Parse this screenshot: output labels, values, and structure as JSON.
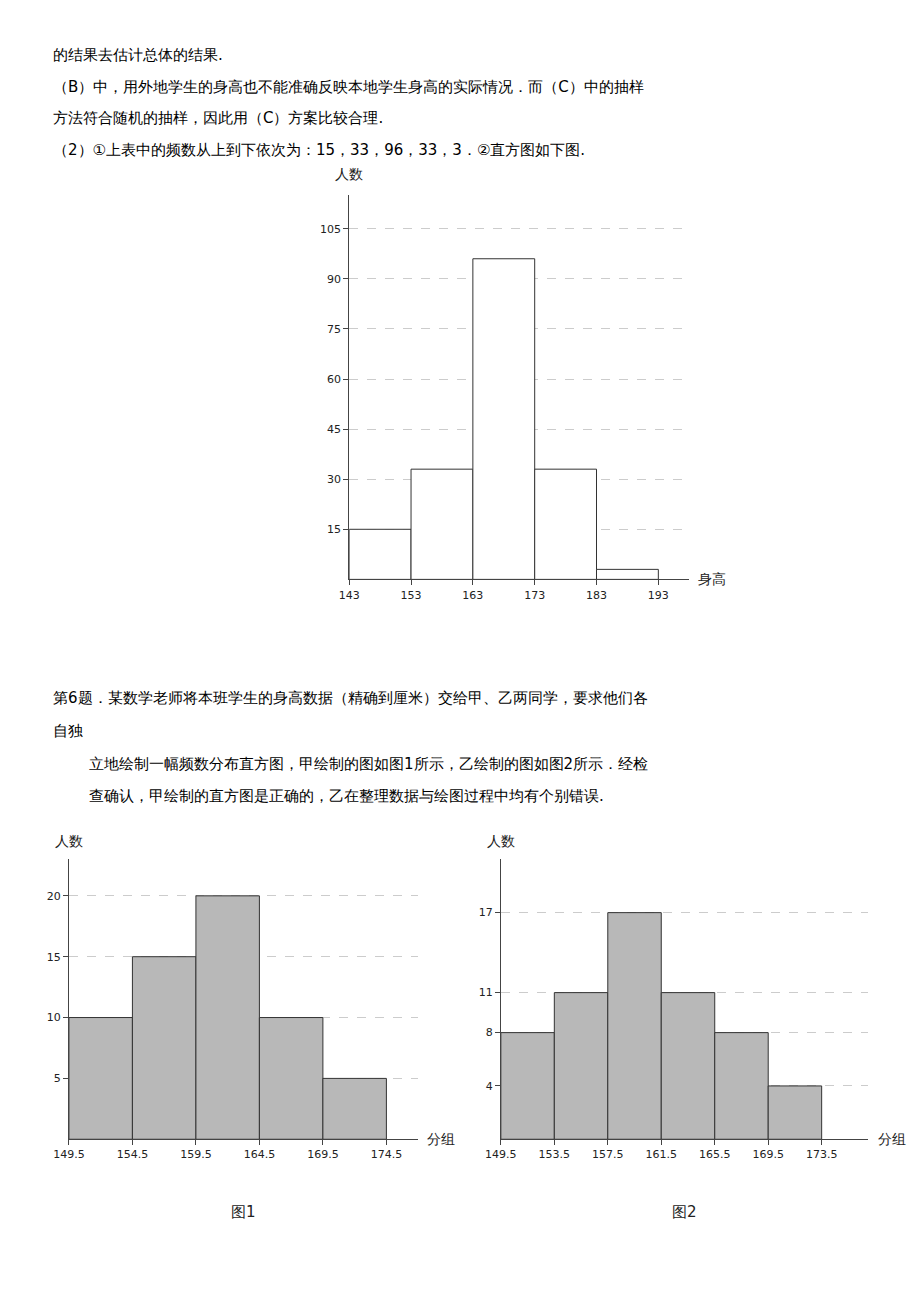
{
  "chart_data": [
    {
      "type": "histogram",
      "annotations": [
        "的结果去估计总体的结果.",
        "（B）中，用外地学生的身高也不能准确反映本地学生身高的实际情况．而（C）中的抽样",
        "方法符合随机的抽样，因此用（C）方案比较合理.",
        "（2）①上表中的频数从上到下依次为：15，33，96，33，3．②直方图如下图."
      ],
      "bins": [
        143,
        153,
        163,
        173,
        183,
        193
      ],
      "values": [
        15,
        33,
        96,
        33,
        3
      ],
      "xlabel": "身高",
      "ylabel": "人数",
      "color": "white",
      "xlim": [
        143,
        198
      ],
      "xticks": [
        143,
        153,
        163,
        173,
        183,
        193
      ],
      "ylim": [
        0,
        115
      ],
      "yticks": [
        15,
        30,
        45,
        60,
        75,
        90,
        105
      ],
      "grid": true
    },
    {
      "type": "histogram",
      "title": "图1",
      "annotations": [
        "第6题．某数学老师将本班学生的身高数据（精确到厘米）交给甲、乙两同学，要求他们各",
        "自独",
        "立地绘制一幅频数分布直方图，甲绘制的图如图1所示，乙绘制的图如图2所示．经检",
        "查确认，甲绘制的直方图是正确的，乙在整理数据与绘图过程中均有个别错误."
      ],
      "bins": [
        149.5,
        154.5,
        159.5,
        164.5,
        169.5,
        174.5
      ],
      "values": [
        10,
        15,
        20,
        10,
        5
      ],
      "xlabel": "分组",
      "ylabel": "人数",
      "color": "#b8b8b8",
      "xlim": [
        149.5,
        177
      ],
      "xticks": [
        149.5,
        154.5,
        159.5,
        164.5,
        169.5,
        174.5
      ],
      "ylim": [
        0,
        23
      ],
      "yticks": [
        5,
        10,
        15,
        20
      ],
      "grid": true
    },
    {
      "type": "histogram",
      "title": "图2",
      "bins": [
        149.5,
        153.5,
        157.5,
        161.5,
        165.5,
        169.5,
        173.5
      ],
      "values": [
        8,
        11,
        17,
        11,
        8,
        4
      ],
      "xlabel": "分组",
      "ylabel": "人数",
      "color": "#b8b8b8",
      "xlim": [
        149.5,
        177
      ],
      "xticks": [
        149.5,
        153.5,
        157.5,
        161.5,
        165.5,
        169.5,
        173.5
      ],
      "ylim": [
        0,
        21
      ],
      "yticks": [
        4,
        8,
        11,
        17
      ],
      "grid": true
    }
  ]
}
